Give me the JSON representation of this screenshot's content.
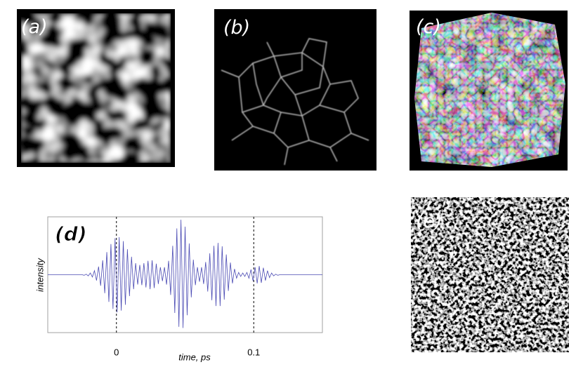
{
  "panels": [
    {
      "label": "(a)"
    },
    {
      "label": "(b)"
    },
    {
      "label": "(c)"
    },
    {
      "label": "(e)"
    }
  ],
  "chart_data": {
    "type": "line",
    "label": "(d)",
    "x_label": "time, ps",
    "y_label": "intensity",
    "color": "#4b4bb4",
    "grid": true,
    "xlim": [
      -0.05,
      0.15
    ],
    "ylim": [
      -1,
      1
    ],
    "xticks": [
      0,
      0.1
    ],
    "x": [
      -0.05,
      -0.025,
      -0.0235,
      -0.022,
      -0.0205,
      -0.019,
      -0.0175,
      -0.016,
      -0.0145,
      -0.013,
      -0.0115,
      -0.01,
      -0.0085,
      -0.007,
      -0.0055,
      -0.004,
      -0.0025,
      -0.001,
      0.0005,
      0.002,
      0.0035,
      0.005,
      0.0065,
      0.008,
      0.0095,
      0.011,
      0.0125,
      0.014,
      0.0155,
      0.017,
      0.0185,
      0.02,
      0.0215,
      0.023,
      0.0245,
      0.026,
      0.0275,
      0.029,
      0.0305,
      0.032,
      0.0335,
      0.035,
      0.0365,
      0.038,
      0.0395,
      0.041,
      0.0425,
      0.044,
      0.0455,
      0.047,
      0.0485,
      0.05,
      0.0515,
      0.053,
      0.0545,
      0.056,
      0.0575,
      0.059,
      0.0605,
      0.062,
      0.0635,
      0.065,
      0.0665,
      0.068,
      0.0695,
      0.071,
      0.0725,
      0.074,
      0.0755,
      0.077,
      0.0785,
      0.08,
      0.0815,
      0.083,
      0.0845,
      0.086,
      0.0875,
      0.089,
      0.0905,
      0.092,
      0.0935,
      0.095,
      0.0965,
      0.098,
      0.0995,
      0.101,
      0.1025,
      0.104,
      0.1055,
      0.107,
      0.1085,
      0.11,
      0.1115,
      0.113,
      0.1145,
      0.116,
      0.1175,
      0.119,
      0.15
    ],
    "values": [
      0,
      0,
      -0.01,
      0.01,
      -0.02,
      0.03,
      -0.04,
      0.07,
      -0.1,
      0.14,
      -0.19,
      0.25,
      -0.32,
      0.39,
      -0.47,
      0.53,
      -0.59,
      0.63,
      -0.65,
      0.65,
      -0.62,
      0.58,
      -0.52,
      0.44,
      -0.37,
      0.31,
      -0.25,
      0.2,
      -0.17,
      0.17,
      -0.18,
      0.2,
      -0.22,
      0.24,
      -0.25,
      0.25,
      -0.23,
      0.19,
      -0.16,
      0.13,
      -0.11,
      0.13,
      -0.17,
      0.24,
      -0.35,
      0.5,
      -0.66,
      0.8,
      -0.9,
      0.95,
      -0.92,
      0.83,
      -0.7,
      0.54,
      -0.39,
      0.26,
      -0.18,
      0.13,
      -0.12,
      0.13,
      -0.16,
      0.22,
      -0.29,
      0.37,
      -0.44,
      0.5,
      -0.54,
      0.55,
      -0.54,
      0.49,
      -0.43,
      0.35,
      -0.28,
      0.21,
      -0.15,
      0.1,
      -0.06,
      0.04,
      -0.03,
      0.03,
      -0.03,
      0.04,
      -0.06,
      0.09,
      -0.11,
      0.13,
      -0.15,
      0.15,
      -0.14,
      0.12,
      -0.1,
      0.07,
      -0.05,
      0.03,
      -0.02,
      0.01,
      -0.01,
      0,
      0
    ]
  }
}
